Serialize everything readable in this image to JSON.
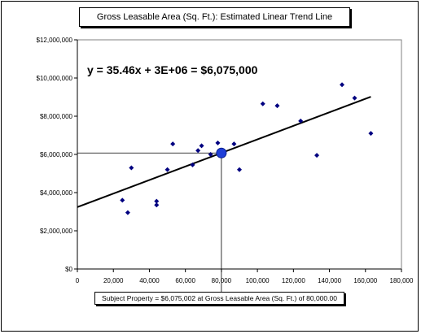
{
  "chart_data": {
    "type": "scatter",
    "title": "Gross Leasable Area (Sq. Ft.):  Estimated Linear Trend Line",
    "equation_label": "y = 35.46x + 3E+06  = $6,075,000",
    "footer_label": "Subject Property = $6,075,002    at Gross Leasable Area (Sq. Ft.) of  80,000.00",
    "xlim": [
      0,
      180000
    ],
    "ylim": [
      0,
      12000000
    ],
    "x_ticks": [
      0,
      20000,
      40000,
      60000,
      80000,
      100000,
      120000,
      140000,
      160000,
      180000
    ],
    "x_tick_labels": [
      "0",
      "20,000",
      "40,000",
      "60,000",
      "80,000",
      "100,000",
      "120,000",
      "140,000",
      "160,000",
      "180,000"
    ],
    "y_ticks": [
      0,
      2000000,
      4000000,
      6000000,
      8000000,
      10000000,
      12000000
    ],
    "y_tick_labels": [
      "$0",
      "$2,000,000",
      "$4,000,000",
      "$6,000,000",
      "$8,000,000",
      "$10,000,000",
      "$12,000,000"
    ],
    "points": [
      {
        "x": 25000,
        "y": 3600000
      },
      {
        "x": 28000,
        "y": 2950000
      },
      {
        "x": 30000,
        "y": 5300000
      },
      {
        "x": 44000,
        "y": 3350000
      },
      {
        "x": 44000,
        "y": 3550000
      },
      {
        "x": 50000,
        "y": 5200000
      },
      {
        "x": 53000,
        "y": 6550000
      },
      {
        "x": 64000,
        "y": 5450000
      },
      {
        "x": 67000,
        "y": 6200000
      },
      {
        "x": 69000,
        "y": 6450000
      },
      {
        "x": 74000,
        "y": 6000000
      },
      {
        "x": 78000,
        "y": 6600000
      },
      {
        "x": 87000,
        "y": 6550000
      },
      {
        "x": 90000,
        "y": 5200000
      },
      {
        "x": 103000,
        "y": 8650000
      },
      {
        "x": 111000,
        "y": 8550000
      },
      {
        "x": 124000,
        "y": 7750000
      },
      {
        "x": 133000,
        "y": 5950000
      },
      {
        "x": 147000,
        "y": 9650000
      },
      {
        "x": 154000,
        "y": 8950000
      },
      {
        "x": 163000,
        "y": 7100000
      }
    ],
    "trend_line": {
      "x": [
        0,
        163000
      ],
      "y": [
        3240000,
        9020000
      ]
    },
    "subject_point": {
      "x": 80000,
      "y": 6075000
    },
    "point_color": "#000080",
    "subject_color": "#1f3fd8",
    "grid": false,
    "legend": "none"
  }
}
